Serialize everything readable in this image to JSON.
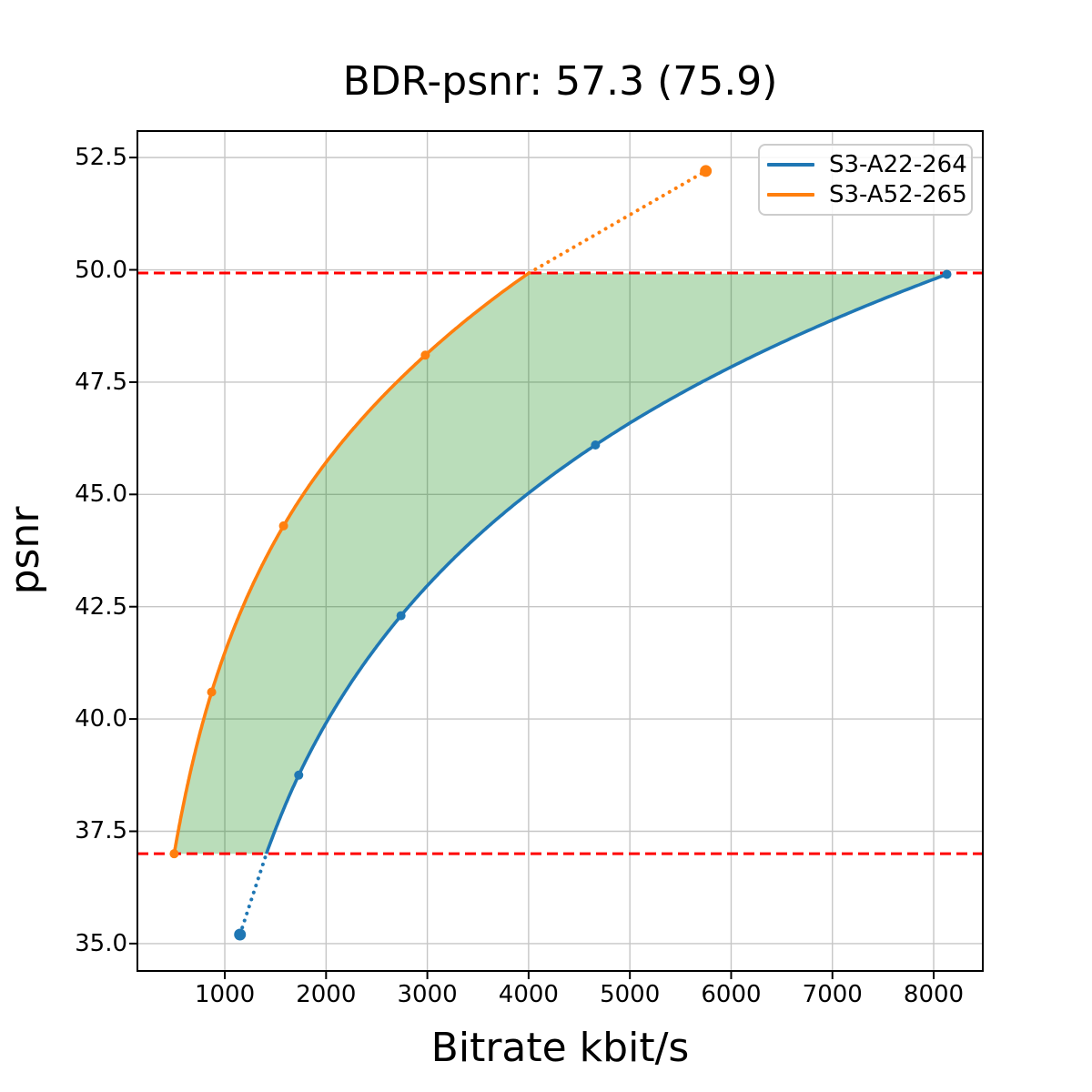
{
  "chart_data": {
    "type": "line",
    "title": "BDR-psnr: 57.3 (75.9)",
    "xlabel": "Bitrate kbit/s",
    "ylabel": "psnr",
    "xlim": [
      137,
      8485
    ],
    "ylim": [
      34.39,
      53.09
    ],
    "xtick_values": [
      1000,
      2000,
      3000,
      4000,
      5000,
      6000,
      7000,
      8000
    ],
    "xtick_labels": [
      "1000",
      "2000",
      "3000",
      "4000",
      "5000",
      "6000",
      "7000",
      "8000"
    ],
    "ytick_values": [
      35.0,
      37.5,
      40.0,
      42.5,
      45.0,
      47.5,
      50.0,
      52.5
    ],
    "ytick_labels": [
      "35.0",
      "37.5",
      "40.0",
      "42.5",
      "45.0",
      "47.5",
      "50.0",
      "52.5"
    ],
    "grid": true,
    "legend_position": "upper right",
    "series": [
      {
        "name": "S3-A22-264",
        "color": "#1f77b4",
        "points": [
          [
            1150,
            35.2
          ],
          [
            1730,
            38.75
          ],
          [
            2740,
            42.3
          ],
          [
            4660,
            46.1
          ],
          [
            8130,
            49.9
          ]
        ],
        "dotted_segment": "start"
      },
      {
        "name": "S3-A52-265",
        "color": "#ff7f0e",
        "points": [
          [
            500,
            37.0
          ],
          [
            870,
            40.6
          ],
          [
            1580,
            44.3
          ],
          [
            2980,
            48.1
          ],
          [
            5750,
            52.2
          ]
        ],
        "dotted_segment": "end"
      }
    ],
    "hlines": [
      {
        "y": 37.0,
        "color": "#ff0000",
        "style": "dashed"
      },
      {
        "y": 49.93,
        "color": "#ff0000",
        "style": "dashed"
      }
    ],
    "shaded_region": {
      "color": "#008000",
      "opacity": 0.27
    },
    "colors": {
      "grid": "#c6c6c6",
      "frame": "#000000",
      "background": "#ffffff"
    }
  }
}
